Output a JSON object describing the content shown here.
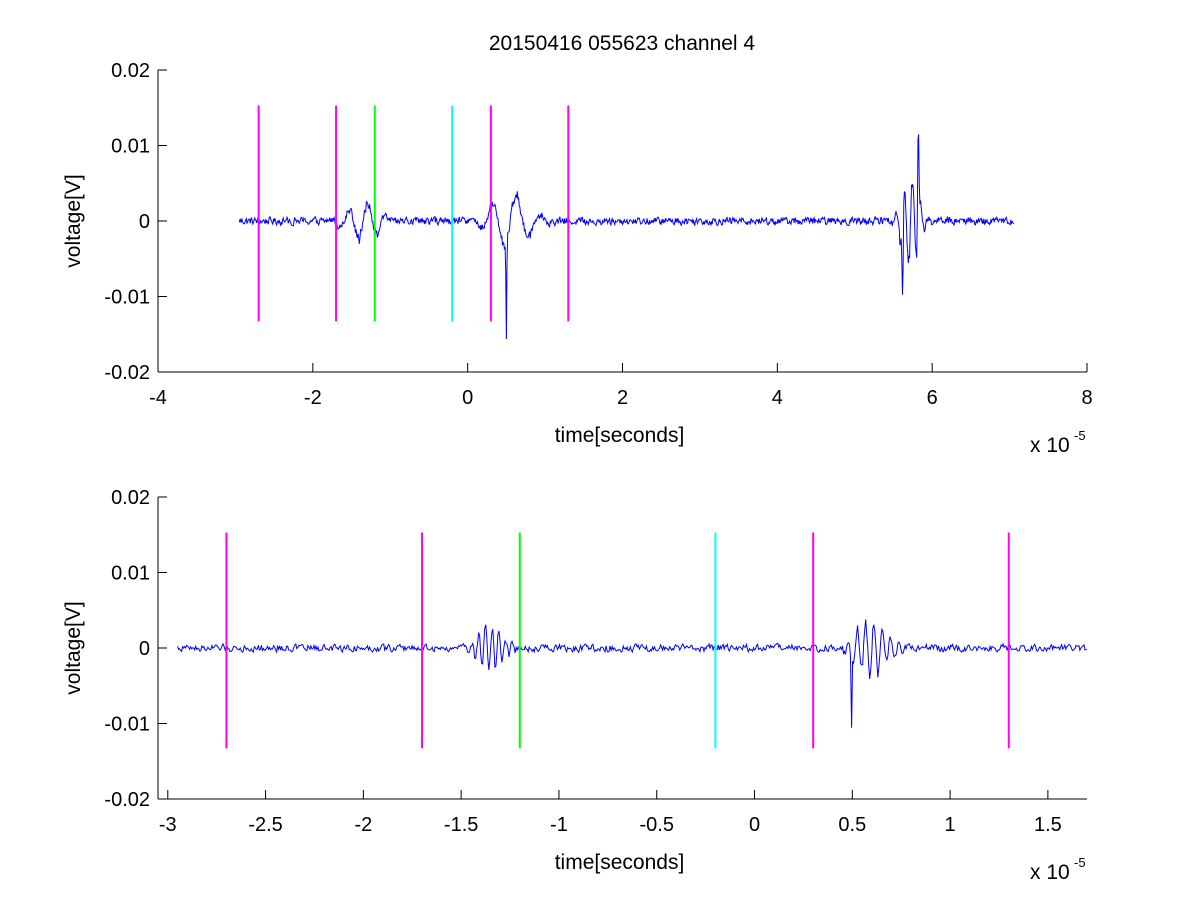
{
  "figure_title": "20150416 055623 channel 4",
  "colors": {
    "signal": "#0000ff",
    "magenta": "#ff00ff",
    "green": "#00ff00",
    "cyan": "#00ffff",
    "axes": "#000000"
  },
  "chart_data": [
    {
      "type": "line",
      "title": "20150416 055623 channel 4",
      "xlabel": "time[seconds]",
      "ylabel": "voltage[V]",
      "x_scale_note": "x 10",
      "x_scale_exp": "-5",
      "xlim": [
        -4,
        8
      ],
      "ylim": [
        -0.02,
        0.02
      ],
      "x_ticks": [
        -4,
        -2,
        0,
        2,
        4,
        6,
        8
      ],
      "x_tick_labels": [
        "-4",
        "-2",
        "0",
        "2",
        "4",
        "6",
        "8"
      ],
      "y_ticks": [
        -0.02,
        -0.01,
        0,
        0.01,
        0.02
      ],
      "y_tick_labels": [
        "-0.02",
        "-0.01",
        "0",
        "0.01",
        "0.02"
      ],
      "signal_range": [
        -2.95,
        7.05
      ],
      "bursts": [
        {
          "center": -1.35,
          "width": 0.35,
          "amp": 0.0035,
          "freq": 9
        },
        {
          "center": 0.55,
          "width": 0.45,
          "amp": 0.0045,
          "freq": 9
        },
        {
          "center": 0.5,
          "width": 0.02,
          "amp": -0.012,
          "freq": 1
        },
        {
          "center": 5.72,
          "width": 0.2,
          "amp": 0.008,
          "freq": 12
        },
        {
          "center": 5.82,
          "width": 0.03,
          "amp": 0.0138,
          "freq": 1
        },
        {
          "center": 5.62,
          "width": 0.03,
          "amp": -0.0107,
          "freq": 1
        }
      ],
      "markers": [
        {
          "x": -2.7,
          "color": "#ff00ff",
          "y0": -0.0133,
          "y1": 0.0153
        },
        {
          "x": -1.7,
          "color": "#ff00ff",
          "y0": -0.0133,
          "y1": 0.0153
        },
        {
          "x": -1.2,
          "color": "#00ff00",
          "y0": -0.0133,
          "y1": 0.0153
        },
        {
          "x": -0.2,
          "color": "#00ffff",
          "y0": -0.0133,
          "y1": 0.0153
        },
        {
          "x": 0.3,
          "color": "#ff00ff",
          "y0": -0.0133,
          "y1": 0.0153
        },
        {
          "x": 1.3,
          "color": "#ff00ff",
          "y0": -0.0133,
          "y1": 0.0153
        }
      ]
    },
    {
      "type": "line",
      "title": "",
      "xlabel": "time[seconds]",
      "ylabel": "voltage[V]",
      "x_scale_note": "x 10",
      "x_scale_exp": "-5",
      "xlim": [
        -3.05,
        1.7
      ],
      "ylim": [
        -0.02,
        0.02
      ],
      "x_ticks": [
        -3,
        -2.5,
        -2,
        -1.5,
        -1,
        -0.5,
        0,
        0.5,
        1,
        1.5
      ],
      "x_tick_labels": [
        "-3",
        "-2.5",
        "-2",
        "-1.5",
        "-1",
        "-0.5",
        "0",
        "0.5",
        "1",
        "1.5"
      ],
      "y_ticks": [
        -0.02,
        -0.01,
        0,
        0.01,
        0.02
      ],
      "y_tick_labels": [
        "-0.02",
        "-0.01",
        "0",
        "0.01",
        "0.02"
      ],
      "signal_range": [
        -2.95,
        1.7
      ],
      "bursts": [
        {
          "center": -1.35,
          "width": 0.12,
          "amp": 0.0035,
          "freq": 22
        },
        {
          "center": 0.6,
          "width": 0.15,
          "amp": 0.0045,
          "freq": 22
        },
        {
          "center": 0.495,
          "width": 0.008,
          "amp": -0.012,
          "freq": 1
        }
      ],
      "markers": [
        {
          "x": -2.7,
          "color": "#ff00ff",
          "y0": -0.0133,
          "y1": 0.0153
        },
        {
          "x": -1.7,
          "color": "#ff00ff",
          "y0": -0.0133,
          "y1": 0.0153
        },
        {
          "x": -1.2,
          "color": "#00ff00",
          "y0": -0.0133,
          "y1": 0.0153
        },
        {
          "x": -0.2,
          "color": "#00ffff",
          "y0": -0.0133,
          "y1": 0.0153
        },
        {
          "x": 0.3,
          "color": "#ff00ff",
          "y0": -0.0133,
          "y1": 0.0153
        },
        {
          "x": 1.3,
          "color": "#ff00ff",
          "y0": -0.0133,
          "y1": 0.0153
        }
      ]
    }
  ]
}
